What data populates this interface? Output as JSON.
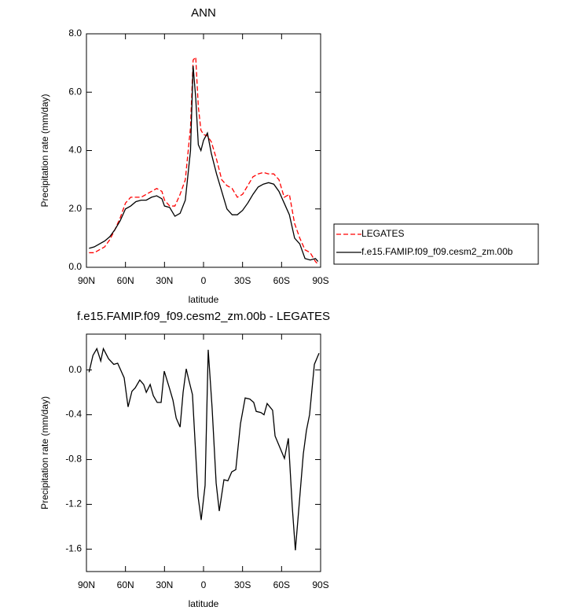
{
  "chart_data": [
    {
      "type": "line",
      "title": "ANN",
      "xlabel": "latitude",
      "ylabel": "Precipitation rate (mm/day)",
      "x": [
        88,
        84,
        80,
        76,
        72,
        68,
        64,
        60,
        56,
        52,
        48,
        44,
        40,
        36,
        32,
        30,
        26,
        22,
        18,
        14,
        10,
        8,
        6,
        4,
        2,
        0,
        -3,
        -6,
        -10,
        -14,
        -18,
        -22,
        -26,
        -30,
        -34,
        -38,
        -42,
        -46,
        -50,
        -54,
        -58,
        -62,
        -66,
        -70,
        -74,
        -78,
        -82,
        -86,
        -88
      ],
      "series": [
        {
          "name": "LEGATES",
          "color": "#ff0000",
          "dashed": true,
          "values": [
            0.5,
            0.5,
            0.6,
            0.7,
            0.95,
            1.3,
            1.7,
            2.2,
            2.4,
            2.4,
            2.4,
            2.5,
            2.6,
            2.7,
            2.6,
            2.3,
            2.1,
            2.1,
            2.5,
            3.0,
            4.8,
            7.1,
            7.2,
            5.5,
            4.7,
            4.55,
            4.5,
            4.3,
            3.7,
            3.0,
            2.8,
            2.7,
            2.4,
            2.5,
            2.8,
            3.1,
            3.2,
            3.25,
            3.2,
            3.2,
            3.0,
            2.4,
            2.5,
            1.5,
            1.0,
            0.6,
            0.5,
            0.2,
            0.1
          ]
        },
        {
          "name": "f.e15.FAMIP.f09_f09.cesm2_zm.00b",
          "color": "#000000",
          "dashed": false,
          "values": [
            0.65,
            0.7,
            0.8,
            0.9,
            1.05,
            1.3,
            1.6,
            2.0,
            2.1,
            2.25,
            2.3,
            2.3,
            2.4,
            2.45,
            2.35,
            2.1,
            2.05,
            1.75,
            1.85,
            2.3,
            4.0,
            6.9,
            5.8,
            4.2,
            4.0,
            4.35,
            4.6,
            3.9,
            3.2,
            2.6,
            2.0,
            1.8,
            1.8,
            1.95,
            2.2,
            2.5,
            2.75,
            2.85,
            2.9,
            2.85,
            2.6,
            2.2,
            1.8,
            1.0,
            0.8,
            0.3,
            0.25,
            0.3,
            0.2
          ]
        }
      ],
      "xlim": [
        90,
        -90
      ],
      "xticks": [
        {
          "value": 90,
          "label": "90N"
        },
        {
          "value": 60,
          "label": "60N"
        },
        {
          "value": 30,
          "label": "30N"
        },
        0,
        {
          "value": -30,
          "label": "30S"
        },
        {
          "value": -60,
          "label": "60S"
        },
        {
          "value": -90,
          "label": "90S"
        }
      ],
      "ylim": [
        0,
        8
      ],
      "yticks": [
        {
          "value": 0,
          "label": "0.0"
        },
        {
          "value": 2,
          "label": "2.0"
        },
        {
          "value": 4,
          "label": "4.0"
        },
        {
          "value": 6,
          "label": "6.0"
        },
        {
          "value": 8,
          "label": "8.0"
        }
      ],
      "legend": "right"
    },
    {
      "type": "line",
      "title": "f.e15.FAMIP.f09_f09.cesm2_zm.00b - LEGATES",
      "xlabel": "latitude",
      "ylabel": "Precipitation rate (mm/day)",
      "color": "#000000",
      "x": [
        88,
        85,
        82,
        79,
        77,
        73,
        69,
        66,
        61,
        58,
        55,
        52.5,
        49,
        46,
        44,
        41,
        38.6,
        35.6,
        32.6,
        30.2,
        26,
        23.5,
        21,
        18,
        15.7,
        13.3,
        11.5,
        8.5,
        4.2,
        1.8,
        -1.2,
        -3.6,
        -6.6,
        -9.7,
        -12.1,
        -15.7,
        -18.7,
        -21.7,
        -24.8,
        -28.4,
        -32,
        -35.6,
        -38.6,
        -40.5,
        -44.1,
        -46.5,
        -48.9,
        -53.1,
        -55,
        -58.6,
        -62.2,
        -65.2,
        -68.2,
        -70.6,
        -73.1,
        -76.7,
        -79.1,
        -81.5,
        -85.2,
        -88.8
      ],
      "values": [
        -0.02,
        0.13,
        0.19,
        0.08,
        0.19,
        0.1,
        0.05,
        0.06,
        -0.07,
        -0.33,
        -0.19,
        -0.16,
        -0.09,
        -0.13,
        -0.2,
        -0.13,
        -0.23,
        -0.29,
        -0.29,
        -0.01,
        -0.17,
        -0.27,
        -0.43,
        -0.51,
        -0.2,
        0.01,
        -0.08,
        -0.22,
        -1.13,
        -1.34,
        -1.03,
        0.18,
        -0.34,
        -1.01,
        -1.26,
        -0.98,
        -0.99,
        -0.91,
        -0.89,
        -0.48,
        -0.25,
        -0.26,
        -0.29,
        -0.37,
        -0.38,
        -0.4,
        -0.3,
        -0.36,
        -0.59,
        -0.69,
        -0.79,
        -0.61,
        -1.22,
        -1.61,
        -1.26,
        -0.75,
        -0.54,
        -0.4,
        0.05,
        0.15
      ],
      "xlim": [
        90,
        -90
      ],
      "xticks": [
        {
          "value": 90,
          "label": "90N"
        },
        {
          "value": 60,
          "label": "60N"
        },
        {
          "value": 30,
          "label": "30N"
        },
        0,
        {
          "value": -30,
          "label": "30S"
        },
        {
          "value": -60,
          "label": "60S"
        },
        {
          "value": -90,
          "label": "90S"
        }
      ],
      "ylim": [
        -1.8,
        0.32
      ],
      "yticks": [
        {
          "value": 0,
          "label": "0.0"
        },
        -0.4,
        -0.8,
        -1.2,
        -1.6
      ]
    }
  ]
}
